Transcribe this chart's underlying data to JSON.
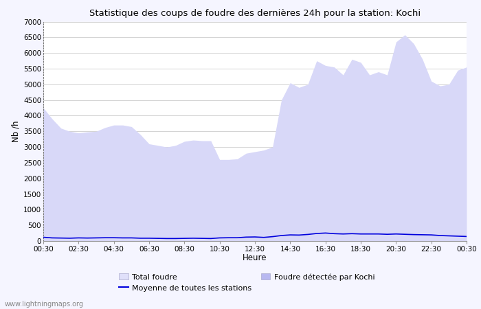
{
  "title": "Statistique des coups de foudre des dernières 24h pour la station: Kochi",
  "ylabel": "Nb /h",
  "xlabel": "Heure",
  "xlim": [
    0,
    48
  ],
  "ylim": [
    0,
    7000
  ],
  "yticks": [
    0,
    500,
    1000,
    1500,
    2000,
    2500,
    3000,
    3500,
    4000,
    4500,
    5000,
    5500,
    6000,
    6500,
    7000
  ],
  "xtick_labels": [
    "00:30",
    "02:30",
    "04:30",
    "06:30",
    "08:30",
    "10:30",
    "12:30",
    "14:30",
    "16:30",
    "18:30",
    "20:30",
    "22:30",
    "00:30"
  ],
  "xtick_positions": [
    0,
    4,
    8,
    12,
    16,
    20,
    24,
    28,
    32,
    36,
    40,
    44,
    48
  ],
  "background_color": "#f5f5ff",
  "plot_bg_color": "#ffffff",
  "grid_color": "#cccccc",
  "fill_color": "#d8d8f8",
  "moyenne_color": "#0000dd",
  "watermark": "www.lightningmaps.org",
  "total_foudre": [
    4250,
    3900,
    3600,
    3500,
    3450,
    3480,
    3500,
    3620,
    3700,
    3700,
    3650,
    3400,
    3100,
    3050,
    3000,
    3050,
    3180,
    3220,
    3200,
    3200,
    2600,
    2600,
    2620,
    2800,
    2850,
    2900,
    3000,
    4500,
    5050,
    4900,
    5000,
    5750,
    5600,
    5550,
    5300,
    5800,
    5700,
    5300,
    5400,
    5300,
    6350,
    6580,
    6300,
    5800,
    5100,
    4950,
    5000,
    5450,
    5550
  ],
  "moyenne": [
    120,
    100,
    95,
    90,
    100,
    95,
    100,
    105,
    105,
    100,
    100,
    90,
    90,
    85,
    80,
    80,
    85,
    90,
    85,
    80,
    100,
    105,
    105,
    125,
    130,
    115,
    140,
    175,
    195,
    190,
    210,
    240,
    255,
    235,
    225,
    235,
    225,
    225,
    225,
    215,
    225,
    215,
    205,
    200,
    195,
    175,
    165,
    155,
    145
  ]
}
